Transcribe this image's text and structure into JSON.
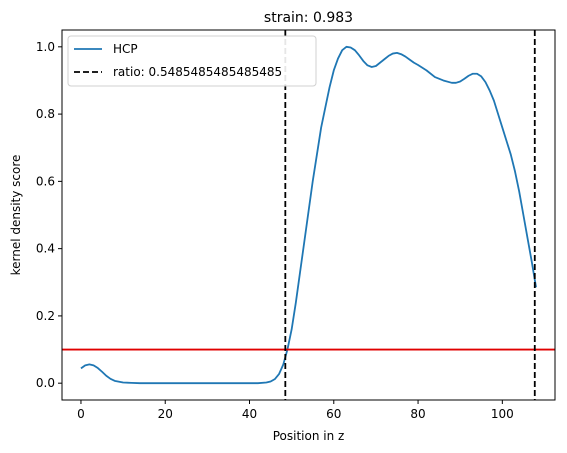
{
  "chart_data": {
    "type": "line",
    "title": "strain: 0.983",
    "xlabel": "Position in z",
    "ylabel": "kernel density score",
    "xlim": [
      -4.5,
      112.5
    ],
    "ylim": [
      -0.05,
      1.05
    ],
    "xticks": [
      0,
      20,
      40,
      60,
      80,
      100
    ],
    "yticks": [
      0.0,
      0.2,
      0.4,
      0.6,
      0.8,
      1.0
    ],
    "xtick_labels": [
      "0",
      "20",
      "40",
      "60",
      "80",
      "100"
    ],
    "ytick_labels": [
      "0.0",
      "0.2",
      "0.4",
      "0.6",
      "0.8",
      "1.0"
    ],
    "grid": false,
    "legend_position": "top-left",
    "series": [
      {
        "name": "HCP",
        "color": "#1f77b4",
        "x": [
          0,
          1,
          2,
          3,
          4,
          5,
          6,
          7,
          8,
          10,
          12,
          14,
          20,
          30,
          40,
          42,
          44,
          45,
          46,
          47,
          48,
          49,
          50,
          51,
          52,
          53,
          54,
          55,
          56,
          57,
          58,
          59,
          60,
          61,
          62,
          63,
          64,
          65,
          66,
          67,
          68,
          69,
          70,
          71,
          72,
          73,
          74,
          75,
          76,
          77,
          78,
          79,
          80,
          82,
          84,
          86,
          88,
          89,
          90,
          91,
          92,
          93,
          94,
          95,
          96,
          97,
          98,
          99,
          100,
          101,
          102,
          103,
          104,
          105,
          106,
          107,
          108
        ],
        "y": [
          0.044,
          0.053,
          0.056,
          0.053,
          0.045,
          0.034,
          0.022,
          0.013,
          0.007,
          0.002,
          0.001,
          0.0,
          0.0,
          0.0,
          0.0,
          0.0,
          0.002,
          0.005,
          0.012,
          0.027,
          0.055,
          0.1,
          0.16,
          0.24,
          0.33,
          0.42,
          0.51,
          0.6,
          0.68,
          0.76,
          0.82,
          0.88,
          0.93,
          0.965,
          0.99,
          1.0,
          0.998,
          0.99,
          0.975,
          0.958,
          0.945,
          0.94,
          0.943,
          0.953,
          0.963,
          0.973,
          0.98,
          0.982,
          0.978,
          0.971,
          0.962,
          0.953,
          0.946,
          0.93,
          0.91,
          0.9,
          0.893,
          0.893,
          0.897,
          0.905,
          0.914,
          0.92,
          0.92,
          0.912,
          0.895,
          0.87,
          0.84,
          0.8,
          0.76,
          0.72,
          0.68,
          0.63,
          0.57,
          0.5,
          0.43,
          0.36,
          0.285
        ]
      },
      {
        "name": "ratio: 0.5485485485485485",
        "color": "#000000",
        "style": "dashed",
        "vertical_lines_x": [
          48.5,
          107.7
        ]
      }
    ],
    "horizontal_line": {
      "y": 0.1,
      "color": "#e00000"
    }
  }
}
